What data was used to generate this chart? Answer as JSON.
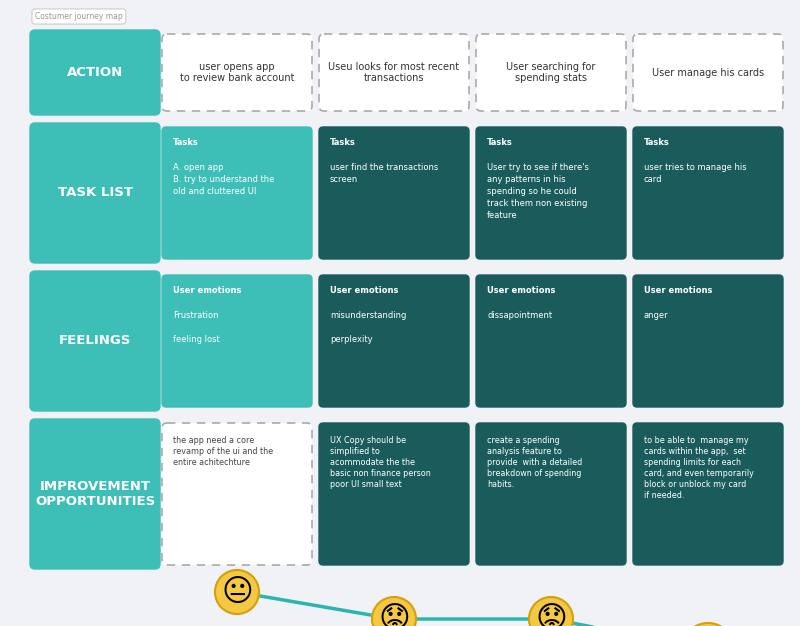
{
  "title": "Costumer journey map",
  "bg_color": "#f0f2f5",
  "teal_light": "#3dbfb8",
  "teal_dark": "#1a5c5c",
  "action_texts": [
    "user opens app\nto review bank account",
    "Useu looks for most recent\ntransactions",
    "User searching for\nspending stats",
    "User manage his cards"
  ],
  "task_texts": [
    "Tasks\n\nA. open app\nB. try to understand the\nold and cluttered UI",
    "Tasks\n\nuser find the transactions\nscreen",
    "Tasks\n\nUser try to see if there's\nany patterns in his\nspending so he could\ntrack them non existing\nfeature",
    "Tasks\n\nuser tries to manage his\ncard"
  ],
  "feelings_texts": [
    "User emotions\n\nFrustration\n\nfeeling lost",
    "User emotions\n\nmisunderstanding\n\nperplexity",
    "User emotions\n\ndissapointment",
    "User emotions\n\nanger"
  ],
  "improve_texts": [
    "the app need a core\nrevamp of the ui and the\nentire achitechture",
    "UX Copy should be\nsimplified to\nacommodate the the\nbasic non finance person\npoor UI small text",
    "create a spending\nanalysis feature to\nprovide  with a detailed\nbreakdown of spending\nhabits.",
    "to be able to  manage my\ncards within the app,  set\nspending limits for each\ncard, and even temporarily\nblock or unblock my card\nif needed."
  ],
  "line_color": "#2ab5b0",
  "col_colors_task": [
    "#3dbfb8",
    "#1a5c5c",
    "#1a5c5c",
    "#1a5c5c"
  ],
  "col_colors_feel": [
    "#3dbfb8",
    "#1a5c5c",
    "#1a5c5c",
    "#1a5c5c"
  ],
  "col_colors_imp": [
    "white",
    "#1a5c5c",
    "#1a5c5c",
    "#1a5c5c"
  ]
}
